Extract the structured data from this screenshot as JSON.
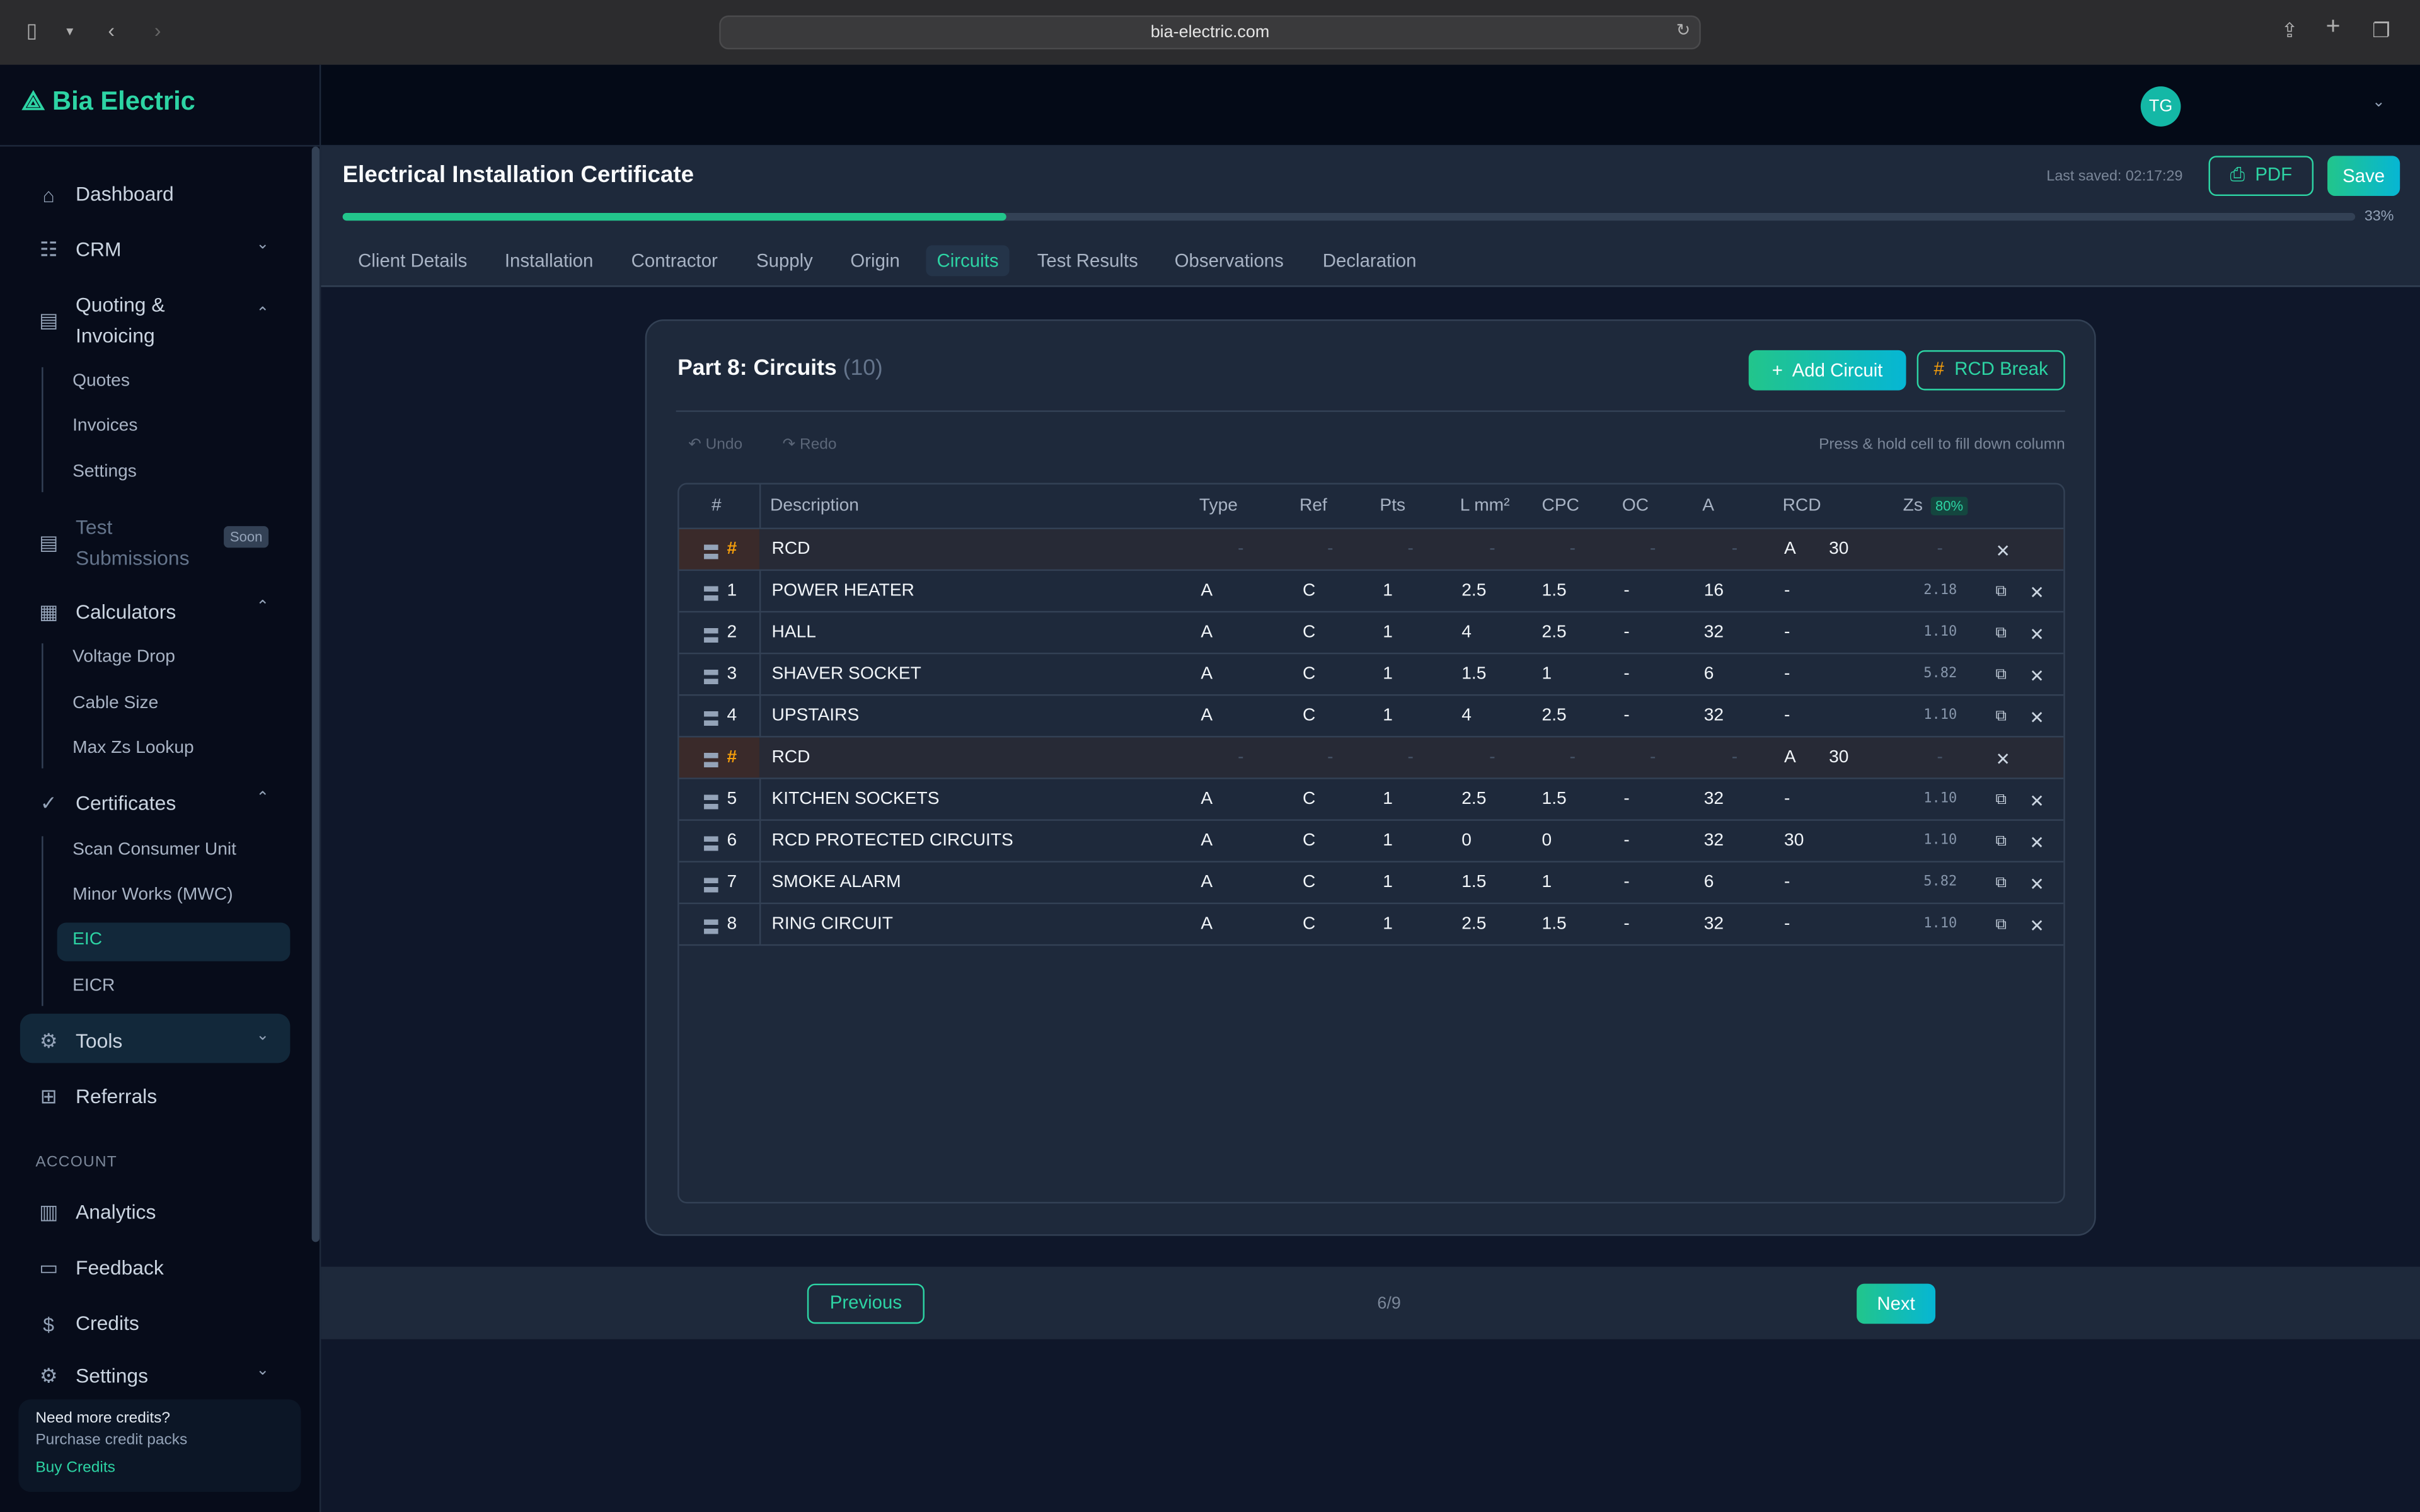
{
  "browser": {
    "url": "bia-electric.com"
  },
  "brand": {
    "name": "Bia Electric",
    "accent": "#2dd4a4"
  },
  "sidebar": {
    "items": [
      {
        "label": "Dashboard",
        "icon": "home-icon"
      },
      {
        "label": "CRM",
        "icon": "users-icon"
      },
      {
        "label": "Quoting &",
        "label2": "Invoicing",
        "icon": "document-icon"
      },
      {
        "label": "Test",
        "label2": "Submissions",
        "badge": "Soon",
        "icon": "document-icon"
      },
      {
        "label": "Calculators",
        "icon": "calculator-icon"
      },
      {
        "label": "Certificates",
        "icon": "check-circle-icon"
      },
      {
        "label": "Tools",
        "icon": "gear-icon"
      },
      {
        "label": "Referrals",
        "icon": "gift-icon"
      },
      {
        "label": "Analytics",
        "icon": "chart-icon"
      },
      {
        "label": "Feedback",
        "icon": "message-icon"
      },
      {
        "label": "Credits",
        "icon": "dollar-icon"
      },
      {
        "label": "Settings",
        "icon": "gear-icon"
      }
    ],
    "quoting_sub": [
      "Quotes",
      "Invoices",
      "Settings"
    ],
    "calc_sub": [
      "Voltage Drop",
      "Cable Size",
      "Max Zs Lookup"
    ],
    "cert_sub": [
      "Scan Consumer Unit",
      "Minor Works (MWC)",
      "EIC",
      "EICR"
    ],
    "account_heading": "ACCOUNT",
    "credits_box": {
      "title": "Need more credits?",
      "subtitle": "Purchase credit packs",
      "link": "Buy Credits"
    }
  },
  "user": {
    "initials": "TG"
  },
  "certificate": {
    "title": "Electrical Installation Certificate",
    "last_saved": "Last saved: 02:17:29",
    "pdf_label": "PDF",
    "save_label": "Save",
    "progress_percent": 33,
    "progress_label": "33%",
    "tabs": [
      "Client Details",
      "Installation",
      "Contractor",
      "Supply",
      "Origin",
      "Circuits",
      "Test Results",
      "Observations",
      "Declaration"
    ],
    "active_tab": "Circuits"
  },
  "circuits": {
    "title": "Part 8: Circuits",
    "count": "(10)",
    "add_label": "Add Circuit",
    "rcd_break_label": "RCD Break",
    "undo": "Undo",
    "redo": "Redo",
    "hint": "Press & hold cell to fill down column",
    "columns": [
      "#",
      "Description",
      "Type",
      "Ref",
      "Pts",
      "L mm²",
      "CPC",
      "OC",
      "A",
      "RCD",
      "Zs"
    ],
    "zs_badge": "80%",
    "rows": [
      {
        "rcd": true,
        "num": "#",
        "desc": "RCD",
        "type": "A",
        "rcd_val": "30"
      },
      {
        "num": "1",
        "desc": "POWER HEATER",
        "type": "A",
        "ref": "C",
        "pts": "1",
        "l": "2.5",
        "cpc": "1.5",
        "oc": "-",
        "a": "16",
        "rcd_val": "-",
        "zs": "2.18"
      },
      {
        "num": "2",
        "desc": "HALL",
        "type": "A",
        "ref": "C",
        "pts": "1",
        "l": "4",
        "cpc": "2.5",
        "oc": "-",
        "a": "32",
        "rcd_val": "-",
        "zs": "1.10"
      },
      {
        "num": "3",
        "desc": "SHAVER SOCKET",
        "type": "A",
        "ref": "C",
        "pts": "1",
        "l": "1.5",
        "cpc": "1",
        "oc": "-",
        "a": "6",
        "rcd_val": "-",
        "zs": "5.82"
      },
      {
        "num": "4",
        "desc": "UPSTAIRS",
        "type": "A",
        "ref": "C",
        "pts": "1",
        "l": "4",
        "cpc": "2.5",
        "oc": "-",
        "a": "32",
        "rcd_val": "-",
        "zs": "1.10"
      },
      {
        "rcd": true,
        "num": "#",
        "desc": "RCD",
        "type": "A",
        "rcd_val": "30"
      },
      {
        "num": "5",
        "desc": "KITCHEN SOCKETS",
        "type": "A",
        "ref": "C",
        "pts": "1",
        "l": "2.5",
        "cpc": "1.5",
        "oc": "-",
        "a": "32",
        "rcd_val": "-",
        "zs": "1.10"
      },
      {
        "num": "6",
        "desc": "RCD PROTECTED CIRCUITS",
        "type": "A",
        "ref": "C",
        "pts": "1",
        "l": "0",
        "cpc": "0",
        "oc": "-",
        "a": "32",
        "rcd_val": "30",
        "zs": "1.10"
      },
      {
        "num": "7",
        "desc": "SMOKE ALARM",
        "type": "A",
        "ref": "C",
        "pts": "1",
        "l": "1.5",
        "cpc": "1",
        "oc": "-",
        "a": "6",
        "rcd_val": "-",
        "zs": "5.82"
      },
      {
        "num": "8",
        "desc": "RING CIRCUIT",
        "type": "A",
        "ref": "C",
        "pts": "1",
        "l": "2.5",
        "cpc": "1.5",
        "oc": "-",
        "a": "32",
        "rcd_val": "-",
        "zs": "1.10"
      }
    ]
  },
  "pager": {
    "previous": "Previous",
    "next": "Next",
    "page": "6/9"
  }
}
